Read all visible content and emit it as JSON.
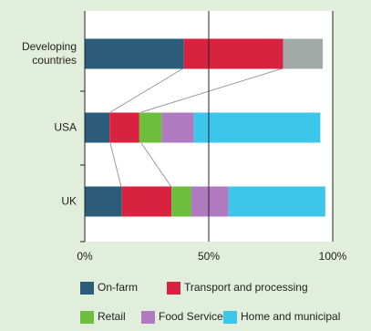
{
  "chart_data": {
    "type": "stacked-barh",
    "categories": [
      "Developing countries",
      "USA",
      "UK"
    ],
    "series": [
      {
        "name": "On-farm",
        "color": "#2b5d7b",
        "values": [
          40,
          10,
          15
        ]
      },
      {
        "name": "Transport and processing",
        "color": "#d8223f",
        "values": [
          40,
          12,
          20
        ]
      },
      {
        "name": "Retail",
        "color": "#6cbe3c",
        "values": [
          0,
          9,
          8
        ]
      },
      {
        "name": "Food Service",
        "color": "#b07ac0",
        "values": [
          0,
          13,
          15
        ]
      },
      {
        "name": "Home and municipal",
        "color": "#3cc6e9",
        "colors": [
          "#a2aaa7",
          "#3cc6e9",
          "#3cc6e9"
        ],
        "values": [
          16,
          51,
          39
        ]
      }
    ],
    "xlim": [
      0,
      100
    ],
    "xticks": [
      {
        "value": 0,
        "label": "0%"
      },
      {
        "value": 50,
        "label": "50%"
      },
      {
        "value": 100,
        "label": "100%"
      }
    ]
  }
}
